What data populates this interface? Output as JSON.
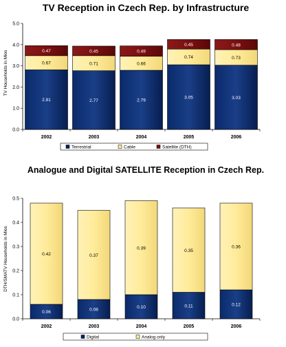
{
  "chart_data": [
    {
      "type": "bar",
      "stacked": true,
      "title": "TV Reception in Czech Rep. by Infrastructure",
      "ylabel": "TV Households in Mios",
      "xlabel": "",
      "categories": [
        "2002",
        "2003",
        "2004",
        "2005",
        "2006"
      ],
      "series": [
        {
          "name": "Terrestrial",
          "color": "#002060",
          "values": [
            2.81,
            2.77,
            2.79,
            3.05,
            3.03
          ],
          "labels": [
            "2.81",
            "2.77",
            "2.79",
            "3.05",
            "3.03"
          ]
        },
        {
          "name": "Cable",
          "color": "#FFEB99",
          "values": [
            0.67,
            0.71,
            0.66,
            0.74,
            0.73
          ],
          "labels": [
            "0.67",
            "0.71",
            "0.66",
            "0.74",
            "0.73"
          ]
        },
        {
          "name": "Satellite (DTH)",
          "color": "#7B1010",
          "values": [
            0.47,
            0.45,
            0.49,
            0.45,
            0.48
          ],
          "labels": [
            "0.47",
            "0.45",
            "0.49",
            "0.45",
            "0.48"
          ]
        }
      ],
      "ylim": [
        0,
        5
      ],
      "yticks": [
        "0.0",
        "1.0",
        "2.0",
        "3.0",
        "4.0",
        "5.0"
      ],
      "grid": false,
      "legend": "bottom"
    },
    {
      "type": "bar",
      "stacked": true,
      "title": "Analogue and Digital SATELLITE Reception in Czech Rep.",
      "ylabel": "DTH/SMATV Households in Mios",
      "xlabel": "",
      "categories": [
        "2002",
        "2003",
        "2004",
        "2005",
        "2006"
      ],
      "series": [
        {
          "name": "Digital",
          "color": "#002060",
          "values": [
            0.06,
            0.08,
            0.1,
            0.11,
            0.12
          ],
          "labels": [
            "0.06",
            "0.08",
            "0.10",
            "0.11",
            "0.12"
          ]
        },
        {
          "name": "Analog only",
          "color": "#FFEB99",
          "values": [
            0.42,
            0.37,
            0.39,
            0.35,
            0.36
          ],
          "labels": [
            "0.42",
            "0.37",
            "0.39",
            "0.35",
            "0.36"
          ]
        }
      ],
      "ylim": [
        0,
        0.5
      ],
      "yticks": [
        "0.0",
        "0.1",
        "0.2",
        "0.3",
        "0.4",
        "0.5"
      ],
      "grid": false,
      "legend": "bottom"
    }
  ]
}
